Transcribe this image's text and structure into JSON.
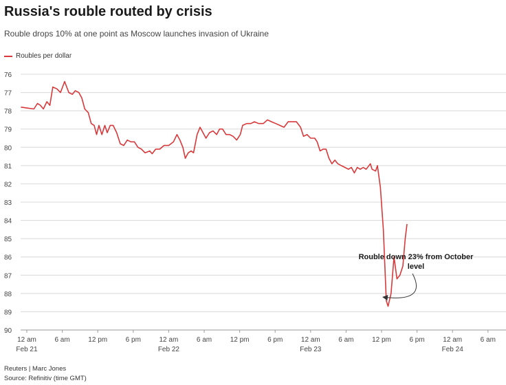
{
  "header": {
    "title": "Russia's rouble routed by crisis",
    "subtitle": "Rouble drops 10% at one point as Moscow launches invasion of Ukraine"
  },
  "footer": {
    "credit": "Reuters | Marc Jones",
    "source": "Source: Refinitiv (time GMT)"
  },
  "colors": {
    "series": "#d9383a",
    "grid": "#d8d8d8",
    "axis": "#999999"
  },
  "chart_data": {
    "type": "line",
    "title": "Russia's rouble routed by crisis",
    "subtitle": "Rouble drops 10% at one point as Moscow launches invasion of Ukraine",
    "ylabel": "",
    "xlabel": "",
    "y_inverted": true,
    "ylim": [
      76,
      90
    ],
    "yticks": [
      76,
      77,
      78,
      79,
      80,
      81,
      82,
      83,
      84,
      85,
      86,
      87,
      88,
      89,
      90
    ],
    "xlim": [
      0,
      84
    ],
    "x_unit": "hours from Feb 21 12 am (GMT)",
    "xticks": [
      {
        "x": 0,
        "label": "12 am",
        "sub": "Feb 21"
      },
      {
        "x": 6,
        "label": "6 am",
        "sub": ""
      },
      {
        "x": 12,
        "label": "12 pm",
        "sub": ""
      },
      {
        "x": 18,
        "label": "6 pm",
        "sub": ""
      },
      {
        "x": 24,
        "label": "12 am",
        "sub": "Feb 22"
      },
      {
        "x": 30,
        "label": "6 am",
        "sub": ""
      },
      {
        "x": 36,
        "label": "12 pm",
        "sub": ""
      },
      {
        "x": 42,
        "label": "6 pm",
        "sub": ""
      },
      {
        "x": 48,
        "label": "12 am",
        "sub": "Feb 23"
      },
      {
        "x": 54,
        "label": "6 am",
        "sub": ""
      },
      {
        "x": 60,
        "label": "12 pm",
        "sub": ""
      },
      {
        "x": 66,
        "label": "6 pm",
        "sub": ""
      },
      {
        "x": 72,
        "label": "12 am",
        "sub": "Feb 24"
      },
      {
        "x": 78,
        "label": "6 am",
        "sub": ""
      }
    ],
    "grid": "horizontal",
    "legend_position": "top-left",
    "series": [
      {
        "name": "Roubles per dollar",
        "points": [
          [
            -1.0,
            77.8
          ],
          [
            0.1,
            77.85
          ],
          [
            1.2,
            77.9
          ],
          [
            1.8,
            77.6
          ],
          [
            2.3,
            77.7
          ],
          [
            2.8,
            77.9
          ],
          [
            3.4,
            77.5
          ],
          [
            3.9,
            77.7
          ],
          [
            4.4,
            76.7
          ],
          [
            5.1,
            76.8
          ],
          [
            5.7,
            77.0
          ],
          [
            6.4,
            76.4
          ],
          [
            7.1,
            77.0
          ],
          [
            7.7,
            77.1
          ],
          [
            8.2,
            76.9
          ],
          [
            8.8,
            77.0
          ],
          [
            9.3,
            77.3
          ],
          [
            9.8,
            77.9
          ],
          [
            10.4,
            78.1
          ],
          [
            10.9,
            78.7
          ],
          [
            11.4,
            78.8
          ],
          [
            11.8,
            79.3
          ],
          [
            12.2,
            78.8
          ],
          [
            12.7,
            79.3
          ],
          [
            13.2,
            78.8
          ],
          [
            13.6,
            79.2
          ],
          [
            14.1,
            78.8
          ],
          [
            14.6,
            78.8
          ],
          [
            15.2,
            79.2
          ],
          [
            15.8,
            79.8
          ],
          [
            16.4,
            79.9
          ],
          [
            17.0,
            79.6
          ],
          [
            17.6,
            79.7
          ],
          [
            18.2,
            79.7
          ],
          [
            18.8,
            80.0
          ],
          [
            19.4,
            80.1
          ],
          [
            20.0,
            80.3
          ],
          [
            20.8,
            80.2
          ],
          [
            21.2,
            80.35
          ],
          [
            21.8,
            80.1
          ],
          [
            22.5,
            80.1
          ],
          [
            23.2,
            79.9
          ],
          [
            24.0,
            79.9
          ],
          [
            24.8,
            79.7
          ],
          [
            25.4,
            79.3
          ],
          [
            25.9,
            79.6
          ],
          [
            26.4,
            80.0
          ],
          [
            26.8,
            80.6
          ],
          [
            27.3,
            80.3
          ],
          [
            27.8,
            80.2
          ],
          [
            28.2,
            80.3
          ],
          [
            28.8,
            79.3
          ],
          [
            29.3,
            78.9
          ],
          [
            29.8,
            79.2
          ],
          [
            30.3,
            79.5
          ],
          [
            30.9,
            79.2
          ],
          [
            31.5,
            79.1
          ],
          [
            32.1,
            79.3
          ],
          [
            32.6,
            79.0
          ],
          [
            33.1,
            79.0
          ],
          [
            33.7,
            79.3
          ],
          [
            34.3,
            79.3
          ],
          [
            34.9,
            79.4
          ],
          [
            35.5,
            79.6
          ],
          [
            36.1,
            79.3
          ],
          [
            36.5,
            78.8
          ],
          [
            37.2,
            78.7
          ],
          [
            37.9,
            78.7
          ],
          [
            38.5,
            78.6
          ],
          [
            39.2,
            78.7
          ],
          [
            40.0,
            78.7
          ],
          [
            40.7,
            78.5
          ],
          [
            41.4,
            78.6
          ],
          [
            42.1,
            78.7
          ],
          [
            42.8,
            78.8
          ],
          [
            43.5,
            78.9
          ],
          [
            44.2,
            78.6
          ],
          [
            44.9,
            78.6
          ],
          [
            45.6,
            78.6
          ],
          [
            46.3,
            78.9
          ],
          [
            46.8,
            79.4
          ],
          [
            47.4,
            79.3
          ],
          [
            48.0,
            79.5
          ],
          [
            48.7,
            79.5
          ],
          [
            49.1,
            79.7
          ],
          [
            49.6,
            80.2
          ],
          [
            50.1,
            80.1
          ],
          [
            50.6,
            80.1
          ],
          [
            51.1,
            80.6
          ],
          [
            51.6,
            80.9
          ],
          [
            52.1,
            80.7
          ],
          [
            52.6,
            80.9
          ],
          [
            53.2,
            81.0
          ],
          [
            53.8,
            81.1
          ],
          [
            54.4,
            81.2
          ],
          [
            54.9,
            81.1
          ],
          [
            55.4,
            81.4
          ],
          [
            55.9,
            81.1
          ],
          [
            56.4,
            81.2
          ],
          [
            56.9,
            81.1
          ],
          [
            57.4,
            81.2
          ],
          [
            58.1,
            80.9
          ],
          [
            58.4,
            81.2
          ],
          [
            59.0,
            81.3
          ],
          [
            59.3,
            81.0
          ],
          [
            59.8,
            82.2
          ],
          [
            60.3,
            84.5
          ],
          [
            60.8,
            88.4
          ],
          [
            61.1,
            88.7
          ],
          [
            61.6,
            88.0
          ],
          [
            62.1,
            86.0
          ],
          [
            62.6,
            87.2
          ],
          [
            63.1,
            87.0
          ],
          [
            63.6,
            86.5
          ],
          [
            64.0,
            85.0
          ],
          [
            64.3,
            84.2
          ]
        ]
      }
    ],
    "annotations": [
      {
        "lines": [
          "Rouble down 23% from October",
          "level"
        ],
        "target": [
          60.7,
          88.2
        ]
      }
    ]
  }
}
